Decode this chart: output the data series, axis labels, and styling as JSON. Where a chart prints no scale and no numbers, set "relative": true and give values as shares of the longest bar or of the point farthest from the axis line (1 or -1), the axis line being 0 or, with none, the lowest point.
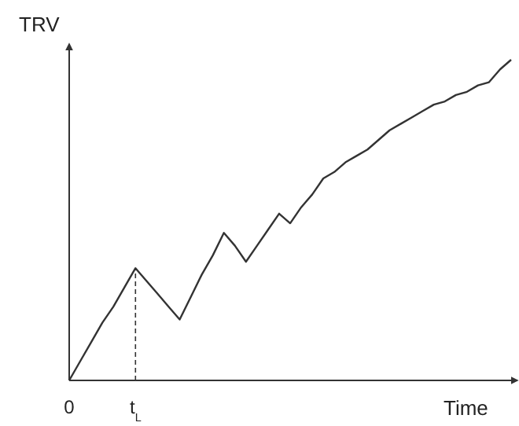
{
  "chart_data": {
    "type": "line",
    "relative": true,
    "xlabel": "Time",
    "ylabel": "TRV",
    "categories": [
      "0",
      null,
      null,
      null,
      null,
      null,
      "t$_{L}$",
      null,
      null,
      null,
      null,
      null,
      null,
      null,
      null,
      null,
      null,
      null,
      null,
      null,
      null,
      null,
      null,
      null,
      null,
      null,
      null,
      null,
      null,
      null,
      null,
      null,
      null,
      null,
      null,
      null,
      null,
      null,
      null,
      null,
      null
    ],
    "series": [
      {
        "color": "#333333",
        "values": [
          0,
          0.06,
          0.12,
          0.18,
          0.23,
          0.29,
          0.35,
          0.31,
          0.27,
          0.23,
          0.19,
          0.26,
          0.33,
          0.39,
          0.46,
          0.42,
          0.37,
          0.42,
          0.47,
          0.52,
          0.49,
          0.54,
          0.58,
          0.63,
          0.65,
          0.68,
          0.7,
          0.72,
          0.75,
          0.78,
          0.8,
          0.82,
          0.84,
          0.86,
          0.87,
          0.89,
          0.9,
          0.92,
          0.93,
          0.97,
          1
        ]
      }
    ],
    "ref_lines": [
      {
        "axis": "x",
        "value": "t$_{L}$",
        "line_style": "dashed",
        "color": "#333333"
      }
    ],
    "grid": false,
    "marker": "none",
    "line_style": "solid"
  }
}
